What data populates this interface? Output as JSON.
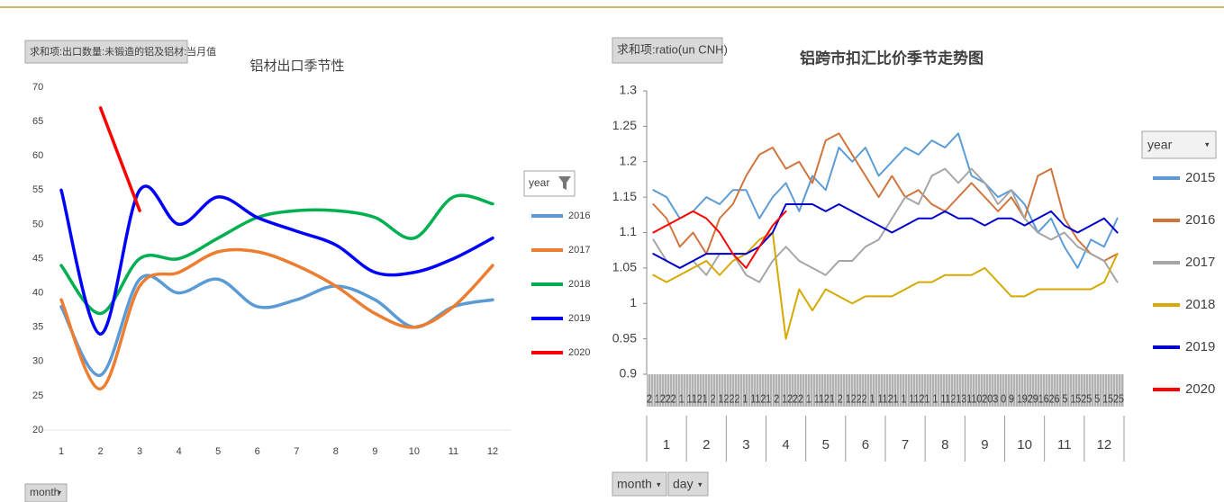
{
  "chart_data": [
    {
      "type": "line",
      "smooth": true,
      "title": "铝材出口季节性",
      "filter_label": "求和项:出口数量:未锻造的铝及铝材:当月值",
      "legend_title": "year",
      "field_buttons": [
        "month"
      ],
      "categories": [
        "1",
        "2",
        "3",
        "4",
        "5",
        "6",
        "7",
        "8",
        "9",
        "10",
        "11",
        "12"
      ],
      "ylim": [
        20,
        70
      ],
      "yticks": [
        20,
        25,
        30,
        35,
        40,
        45,
        50,
        55,
        60,
        65,
        70
      ],
      "grid": false,
      "series": [
        {
          "name": "2016",
          "color": "#5b9bd5",
          "values": [
            38,
            28,
            42,
            40,
            42,
            38,
            39,
            41,
            39,
            35,
            38,
            39
          ]
        },
        {
          "name": "2017",
          "color": "#ed7d31",
          "values": [
            39,
            26,
            41,
            43,
            46,
            46,
            44,
            41,
            37,
            35,
            38,
            44
          ]
        },
        {
          "name": "2018",
          "color": "#00b050",
          "values": [
            44,
            37,
            45,
            45,
            48,
            51,
            52,
            52,
            51,
            48,
            54,
            53
          ]
        },
        {
          "name": "2019",
          "color": "#0000ff",
          "values": [
            55,
            34,
            55,
            50,
            54,
            51,
            49,
            47,
            43,
            43,
            45,
            48
          ]
        },
        {
          "name": "2020",
          "color": "#ff0000",
          "values": [
            null,
            67,
            52,
            null,
            null,
            null,
            null,
            null,
            null,
            null,
            null,
            null
          ]
        }
      ]
    },
    {
      "type": "line",
      "smooth": false,
      "title": "铝跨市扣汇比价季节走势图",
      "filter_label": "求和项:ratio(un CNH)",
      "legend_title": "year",
      "field_buttons": [
        "month",
        "day"
      ],
      "day_labels": "2 1222 1 1121 2 1222 1 1121 2 1222 1 1121 2 1222 1 1121 1 1121 1 11213110203 0 9 19291626 5 1525 5 1525",
      "months": [
        "1",
        "2",
        "3",
        "4",
        "5",
        "6",
        "7",
        "8",
        "9",
        "10",
        "11",
        "12"
      ],
      "ylim": [
        0.9,
        1.3
      ],
      "yticks": [
        0.9,
        0.95,
        1,
        1.05,
        1.1,
        1.15,
        1.2,
        1.25,
        1.3
      ],
      "grid": false,
      "series": [
        {
          "name": "2015",
          "color": "#5b9bd5",
          "values": [
            1.16,
            1.15,
            1.12,
            1.13,
            1.15,
            1.14,
            1.16,
            1.16,
            1.12,
            1.15,
            1.17,
            1.13,
            1.18,
            1.16,
            1.22,
            1.2,
            1.22,
            1.18,
            1.2,
            1.22,
            1.21,
            1.23,
            1.22,
            1.24,
            1.18,
            1.17,
            1.15,
            1.16,
            1.14,
            1.1,
            1.12,
            1.08,
            1.05,
            1.09,
            1.08,
            1.12
          ]
        },
        {
          "name": "2016",
          "color": "#d0743c",
          "values": [
            1.14,
            1.12,
            1.08,
            1.1,
            1.07,
            1.12,
            1.14,
            1.18,
            1.21,
            1.22,
            1.19,
            1.2,
            1.17,
            1.23,
            1.24,
            1.21,
            1.18,
            1.15,
            1.18,
            1.15,
            1.16,
            1.14,
            1.13,
            1.15,
            1.17,
            1.15,
            1.13,
            1.15,
            1.12,
            1.18,
            1.19,
            1.12,
            1.09,
            1.07,
            1.06,
            1.07
          ]
        },
        {
          "name": "2017",
          "color": "#a5a5a5",
          "values": [
            1.09,
            1.06,
            1.05,
            1.06,
            1.04,
            1.07,
            1.07,
            1.04,
            1.03,
            1.06,
            1.08,
            1.06,
            1.05,
            1.04,
            1.06,
            1.06,
            1.08,
            1.09,
            1.12,
            1.15,
            1.14,
            1.18,
            1.19,
            1.17,
            1.19,
            1.17,
            1.14,
            1.16,
            1.12,
            1.1,
            1.09,
            1.1,
            1.08,
            1.07,
            1.06,
            1.03
          ]
        },
        {
          "name": "2018",
          "color": "#d4a900",
          "values": [
            1.04,
            1.03,
            1.04,
            1.05,
            1.06,
            1.04,
            1.06,
            1.07,
            1.09,
            1.1,
            0.95,
            1.02,
            0.99,
            1.02,
            1.01,
            1,
            1.01,
            1.01,
            1.01,
            1.02,
            1.03,
            1.03,
            1.04,
            1.04,
            1.04,
            1.05,
            1.03,
            1.01,
            1.01,
            1.02,
            1.02,
            1.02,
            1.02,
            1.02,
            1.03,
            1.07
          ]
        },
        {
          "name": "2019",
          "color": "#0000cc",
          "values": [
            1.07,
            1.06,
            1.05,
            1.06,
            1.07,
            1.07,
            1.07,
            1.07,
            1.08,
            1.1,
            1.14,
            1.14,
            1.14,
            1.13,
            1.14,
            1.13,
            1.12,
            1.11,
            1.1,
            1.11,
            1.12,
            1.12,
            1.13,
            1.12,
            1.12,
            1.11,
            1.12,
            1.12,
            1.11,
            1.12,
            1.13,
            1.11,
            1.1,
            1.11,
            1.12,
            1.1
          ]
        },
        {
          "name": "2020",
          "color": "#ff0000",
          "values": [
            1.1,
            1.11,
            1.12,
            1.13,
            1.12,
            1.1,
            1.07,
            1.05,
            1.08,
            1.11,
            1.13,
            null,
            null,
            null,
            null,
            null,
            null,
            null,
            null,
            null,
            null,
            null,
            null,
            null,
            null,
            null,
            null,
            null,
            null,
            null,
            null,
            null,
            null,
            null,
            null,
            null
          ]
        }
      ]
    }
  ]
}
